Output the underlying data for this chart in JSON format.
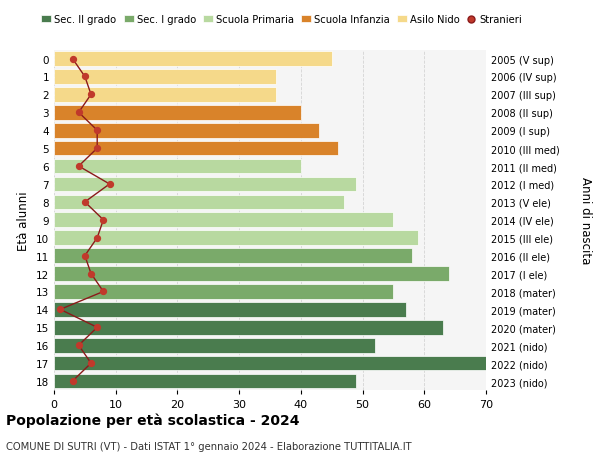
{
  "ages": [
    18,
    17,
    16,
    15,
    14,
    13,
    12,
    11,
    10,
    9,
    8,
    7,
    6,
    5,
    4,
    3,
    2,
    1,
    0
  ],
  "right_labels": [
    "2005 (V sup)",
    "2006 (IV sup)",
    "2007 (III sup)",
    "2008 (II sup)",
    "2009 (I sup)",
    "2010 (III med)",
    "2011 (II med)",
    "2012 (I med)",
    "2013 (V ele)",
    "2014 (IV ele)",
    "2015 (III ele)",
    "2016 (II ele)",
    "2017 (I ele)",
    "2018 (mater)",
    "2019 (mater)",
    "2020 (mater)",
    "2021 (nido)",
    "2022 (nido)",
    "2023 (nido)"
  ],
  "bar_values": [
    49,
    70,
    52,
    63,
    57,
    55,
    64,
    58,
    59,
    55,
    47,
    49,
    40,
    46,
    43,
    40,
    36,
    36,
    45
  ],
  "bar_colors": [
    "#4a7c4e",
    "#4a7c4e",
    "#4a7c4e",
    "#4a7c4e",
    "#4a7c4e",
    "#7aaa6a",
    "#7aaa6a",
    "#7aaa6a",
    "#b8d9a0",
    "#b8d9a0",
    "#b8d9a0",
    "#b8d9a0",
    "#b8d9a0",
    "#d9832a",
    "#d9832a",
    "#d9832a",
    "#f5d98a",
    "#f5d98a",
    "#f5d98a"
  ],
  "stranieri_values": [
    3,
    6,
    4,
    7,
    1,
    8,
    6,
    5,
    7,
    8,
    5,
    9,
    4,
    7,
    7,
    4,
    6,
    5,
    3
  ],
  "legend_labels": [
    "Sec. II grado",
    "Sec. I grado",
    "Scuola Primaria",
    "Scuola Infanzia",
    "Asilo Nido",
    "Stranieri"
  ],
  "legend_colors": [
    "#4a7c4e",
    "#7aaa6a",
    "#b8d9a0",
    "#d9832a",
    "#f5d98a",
    "#c0392b"
  ],
  "title": "Popolazione per età scolastica - 2024",
  "subtitle": "COMUNE DI SUTRI (VT) - Dati ISTAT 1° gennaio 2024 - Elaborazione TUTTITALIA.IT",
  "ylabel_left": "Età alunni",
  "ylabel_right": "Anni di nascita",
  "xlim": [
    0,
    70
  ],
  "background_color": "#ffffff",
  "bar_edge_color": "white",
  "grid_color": "#cccccc",
  "stranieri_line_color": "#8b1a1a",
  "stranieri_dot_color": "#c0392b"
}
